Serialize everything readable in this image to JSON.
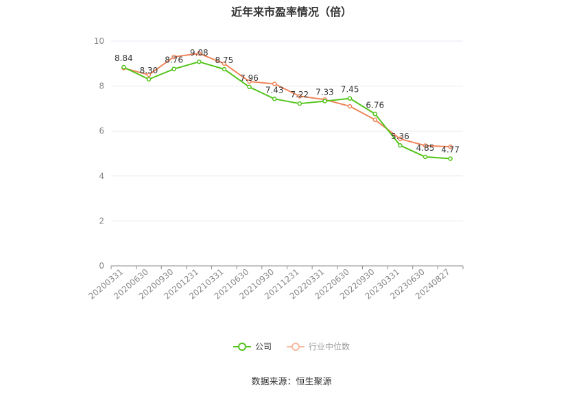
{
  "chart_data": {
    "type": "line",
    "title": "近年来市盈率情况（倍）",
    "categories": [
      "20200331",
      "20200630",
      "20200930",
      "20201231",
      "20210331",
      "20210630",
      "20210930",
      "20211231",
      "20220331",
      "20220630",
      "20220930",
      "20230331",
      "20230630",
      "20240827"
    ],
    "ylim": [
      0,
      10
    ],
    "yticks": [
      0,
      2,
      4,
      6,
      8,
      10
    ],
    "grid": true,
    "legend_position": "bottom",
    "series": [
      {
        "name": "公司",
        "color": "#52c41a",
        "values": [
          8.84,
          8.3,
          8.76,
          9.08,
          8.75,
          7.96,
          7.43,
          7.22,
          7.33,
          7.45,
          6.76,
          5.36,
          4.85,
          4.77
        ],
        "labels": [
          "8.84",
          "8.30",
          "8.76",
          "9.08",
          "8.75",
          "7.96",
          "7.43",
          "7.22",
          "7.33",
          "7.45",
          "6.76",
          "5.36",
          "4.85",
          "4.77"
        ]
      },
      {
        "name": "行业中位数",
        "color": "#f0855a",
        "values": [
          8.8,
          8.5,
          9.3,
          9.45,
          9.0,
          8.2,
          8.1,
          7.55,
          7.4,
          7.1,
          6.5,
          5.65,
          5.35,
          5.3
        ]
      }
    ]
  },
  "legend": {
    "company": "公司",
    "industry": "行业中位数"
  },
  "source": "数据来源：恒生聚源",
  "colors": {
    "company": "#52c41a",
    "industry": "#f0855a",
    "grid": "#e6e9f0",
    "axis": "#888888"
  }
}
